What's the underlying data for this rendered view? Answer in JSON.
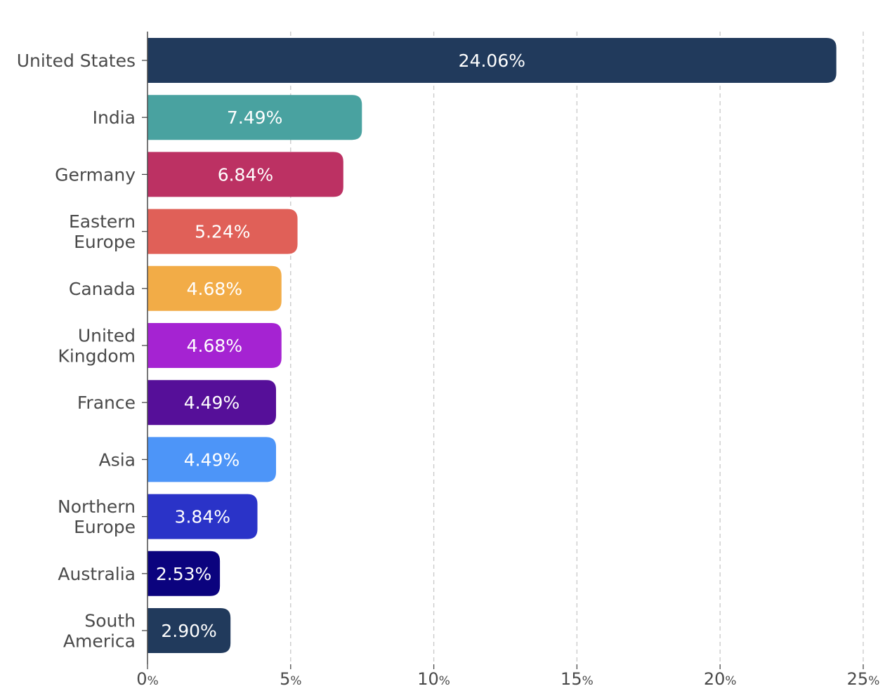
{
  "chart_data": {
    "type": "bar",
    "orientation": "horizontal",
    "categories": [
      [
        "United States"
      ],
      [
        "India"
      ],
      [
        "Germany"
      ],
      [
        "Eastern",
        "Europe"
      ],
      [
        "Canada"
      ],
      [
        "United",
        "Kingdom"
      ],
      [
        "France"
      ],
      [
        "Asia"
      ],
      [
        "Northern",
        "Europe"
      ],
      [
        "Australia"
      ],
      [
        "South",
        "America"
      ]
    ],
    "values": [
      24.06,
      7.49,
      6.84,
      5.24,
      4.68,
      4.68,
      4.49,
      4.49,
      3.84,
      2.53,
      2.9
    ],
    "data_labels": [
      "24.06%",
      "7.49%",
      "6.84%",
      "5.24%",
      "4.68%",
      "4.68%",
      "4.49%",
      "4.49%",
      "3.84%",
      "2.53%",
      "2.90%"
    ],
    "colors": [
      "#213a5c",
      "#49a2a0",
      "#bc3163",
      "#e06058",
      "#f2ac47",
      "#a523d2",
      "#560f99",
      "#4d95f8",
      "#2a33c8",
      "#0b037e",
      "#213a5c"
    ],
    "xlim": [
      0,
      25
    ],
    "x_ticks": [
      0,
      5,
      10,
      15,
      20,
      25
    ],
    "x_tick_unit": "%",
    "grid": "vertical dashed",
    "legend": "none",
    "title": "",
    "xlabel": "",
    "ylabel": ""
  }
}
